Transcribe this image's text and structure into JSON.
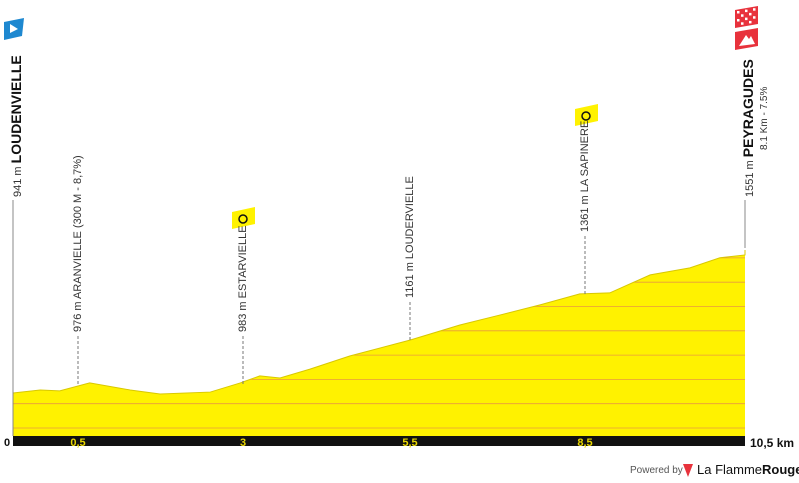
{
  "chart_data": {
    "type": "area",
    "xlabel": "",
    "ylabel": "",
    "xlim": [
      0,
      10.5
    ],
    "x_unit_label": "10,5 km",
    "start_tick": "0",
    "ticks": [
      "0,5",
      "3",
      "5,5",
      "8,5"
    ],
    "profile_km": [
      0,
      0.39,
      0.67,
      1.1,
      1.68,
      2.11,
      2.83,
      3.26,
      3.54,
      3.83,
      4.26,
      4.83,
      5.7,
      6.41,
      6.99,
      7.56,
      8.13,
      8.56,
      9.14,
      9.71,
      10.14,
      10.5,
      10.5
    ],
    "profile_elev": [
      941,
      954,
      950,
      984,
      954,
      937,
      945,
      984,
      1014,
      1005,
      1043,
      1099,
      1167,
      1231,
      1274,
      1317,
      1364,
      1368,
      1445,
      1475,
      1518,
      1530,
      1551
    ],
    "fill_color": "#fff200",
    "start": {
      "label": "941 m",
      "name": "LOUDENVIELLE",
      "color": "#1e88d0"
    },
    "finish": {
      "label": "1551 m",
      "name": "PEYRAGUDES",
      "detail": "8.1 Km - 7.5%",
      "color": "#e8323c"
    },
    "waypoints": [
      {
        "km": "0,5",
        "label": "976 m ARANVIELLE (300 M - 8,7%)"
      },
      {
        "km": "3",
        "label": "983 m ESTARVIELLE",
        "sprint": true
      },
      {
        "km": "5,5",
        "label": "1161 m LOUDERVIELLE"
      },
      {
        "km": "8,5",
        "label": "1361 m LA SAPINERE",
        "sprint": true
      }
    ]
  },
  "footer": {
    "powered": "Powered by",
    "brand_a": "La Flamme",
    "brand_b": "Rouge"
  }
}
